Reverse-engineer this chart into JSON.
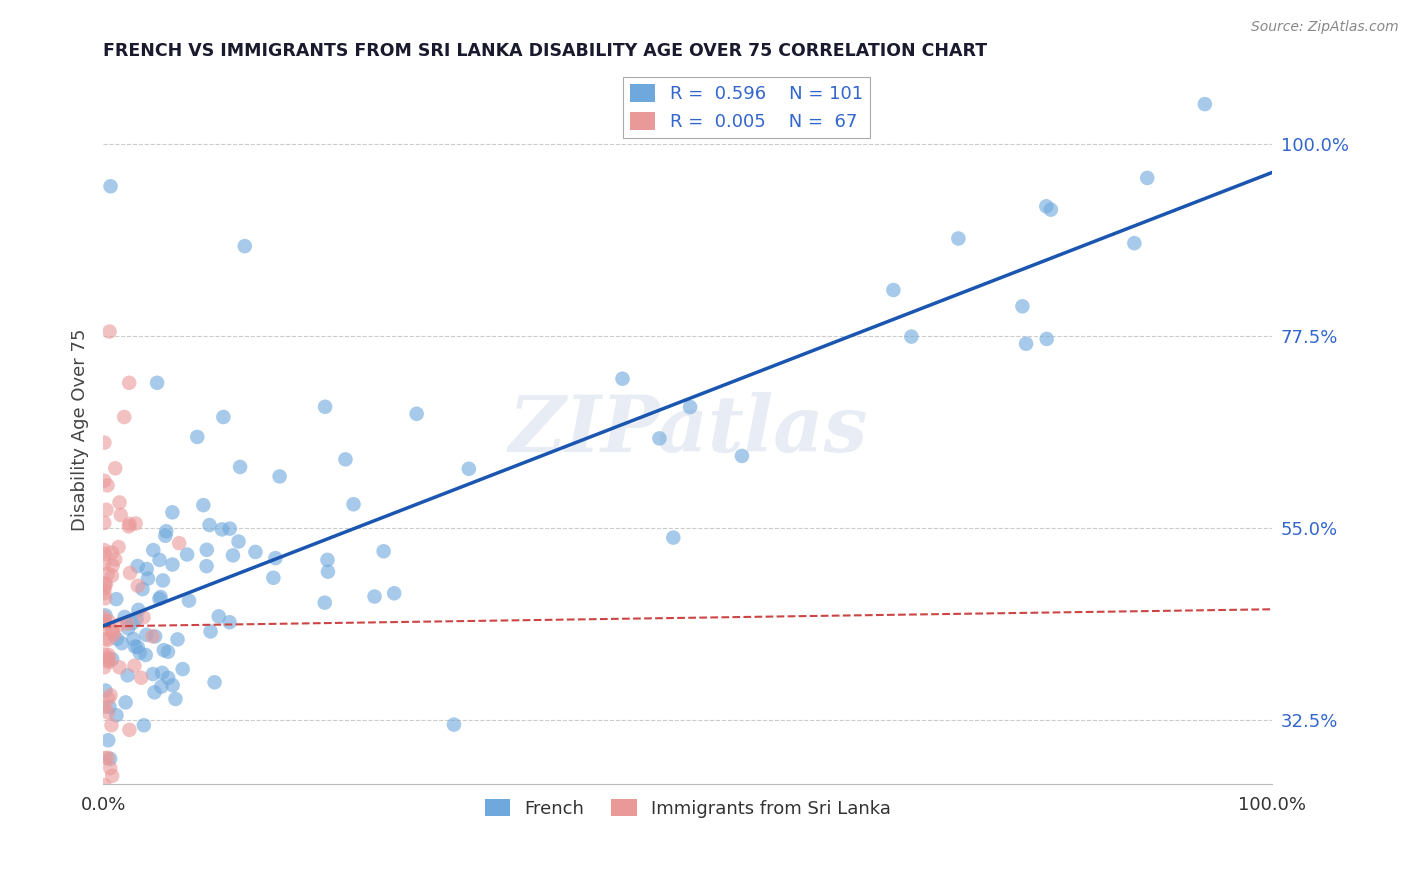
{
  "title": "FRENCH VS IMMIGRANTS FROM SRI LANKA DISABILITY AGE OVER 75 CORRELATION CHART",
  "source": "Source: ZipAtlas.com",
  "ylabel": "Disability Age Over 75",
  "right_yticklabels": [
    "32.5%",
    "55.0%",
    "77.5%",
    "100.0%"
  ],
  "right_yticks_pct": [
    32.5,
    55.0,
    77.5,
    100.0
  ],
  "legend_r1": "R =  0.596",
  "legend_n1": "N = 101",
  "legend_r2": "R =  0.005",
  "legend_n2": "N =  67",
  "watermark": "ZIPatlas",
  "french_color": "#6fa8dc",
  "sri_lanka_color": "#ea9999",
  "french_trend_color": "#1a56b0",
  "sri_lanka_trend_color": "#cc4444",
  "background_color": "#ffffff",
  "grid_color": "#cccccc",
  "xlim": [
    0,
    100
  ],
  "ylim_low": 25,
  "ylim_high": 108
}
